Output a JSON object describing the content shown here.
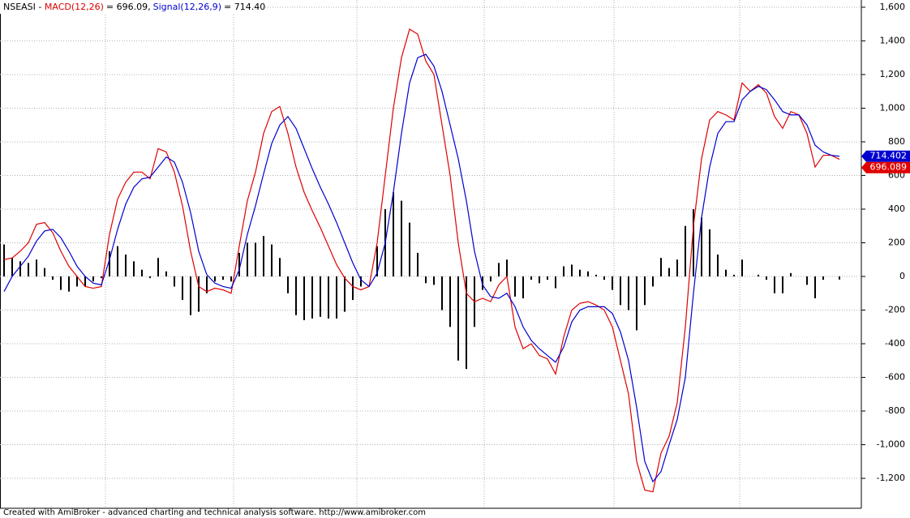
{
  "chart_data": {
    "type": "macd",
    "title_prefix": "NSEASI - ",
    "footer": "Created with AmiBroker - advanced charting and technical analysis software. http://www.amibroker.com",
    "x": [
      0,
      1,
      2,
      3,
      4,
      5,
      6,
      7,
      8,
      9,
      10,
      11,
      12,
      13,
      14,
      15,
      16,
      17,
      18,
      19,
      20,
      21,
      22,
      23,
      24,
      25,
      26,
      27,
      28,
      29,
      30,
      31,
      32,
      33,
      34,
      35,
      36,
      37,
      38,
      39,
      40,
      41,
      42,
      43,
      44,
      45,
      46,
      47,
      48,
      49,
      50,
      51,
      52,
      53,
      54,
      55,
      56,
      57,
      58,
      59,
      60,
      61,
      62,
      63,
      64,
      65,
      66,
      67,
      68,
      69,
      70,
      71,
      72,
      73,
      74,
      75,
      76,
      77,
      78,
      79,
      80,
      81,
      82,
      83,
      84,
      85,
      86,
      87,
      88,
      89,
      90,
      91,
      92,
      93,
      94,
      95,
      96,
      97,
      98,
      99,
      100,
      101,
      102,
      103
    ],
    "xlim": [
      -0.5,
      105.7
    ],
    "xgrid": [
      12.5,
      28.3,
      43.5,
      59.2,
      75.2,
      90.7
    ],
    "ylim": [
      -1378,
      1643
    ],
    "yticks": [
      {
        "value": 1600,
        "label": "1,600"
      },
      {
        "value": 1400,
        "label": "1,400"
      },
      {
        "value": 1200,
        "label": "1,200"
      },
      {
        "value": 1000,
        "label": "1,000"
      },
      800,
      600,
      400,
      200,
      0,
      -200,
      -400,
      -600,
      -800,
      {
        "value": -1000,
        "label": "-1,000"
      },
      {
        "value": -1200,
        "label": "-1,200"
      }
    ],
    "grid": true,
    "series": [
      {
        "name": "MACD(12,26)",
        "color": "#e00000",
        "title_value": "= 696.09,",
        "last_label": "696.089",
        "values": [
          100,
          110,
          150,
          200,
          310,
          320,
          260,
          150,
          60,
          0,
          -60,
          -70,
          -60,
          250,
          460,
          560,
          620,
          620,
          580,
          760,
          740,
          620,
          420,
          150,
          -60,
          -90,
          -70,
          -80,
          -100,
          180,
          450,
          620,
          850,
          980,
          1010,
          850,
          650,
          500,
          390,
          290,
          180,
          70,
          -10,
          -60,
          -80,
          -60,
          200,
          600,
          1000,
          1300,
          1470,
          1440,
          1280,
          1200,
          900,
          600,
          200,
          -100,
          -150,
          -130,
          -150,
          -50,
          0,
          -300,
          -430,
          -400,
          -470,
          -490,
          -580,
          -360,
          -200,
          -160,
          -150,
          -170,
          -200,
          -300,
          -500,
          -700,
          -1100,
          -1270,
          -1280,
          -1050,
          -950,
          -750,
          -300,
          300,
          700,
          930,
          980,
          960,
          930,
          1150,
          1100,
          1140,
          1090,
          950,
          880,
          980,
          960,
          850,
          650,
          720,
          720,
          696.09
        ]
      },
      {
        "name": "Signal(12,26,9)",
        "color": "#0000d0",
        "title_value": "= 714.40",
        "last_label": "714.402",
        "values": [
          -90,
          0,
          60,
          120,
          210,
          270,
          280,
          230,
          150,
          60,
          0,
          -40,
          -50,
          100,
          280,
          430,
          530,
          580,
          590,
          650,
          710,
          680,
          560,
          380,
          150,
          10,
          -40,
          -60,
          -70,
          40,
          250,
          420,
          610,
          790,
          900,
          950,
          880,
          760,
          640,
          530,
          430,
          320,
          200,
          80,
          -20,
          -60,
          20,
          200,
          500,
          850,
          1150,
          1300,
          1320,
          1250,
          1100,
          900,
          700,
          450,
          150,
          -50,
          -120,
          -130,
          -100,
          -180,
          -300,
          -380,
          -430,
          -470,
          -510,
          -420,
          -270,
          -200,
          -180,
          -180,
          -180,
          -220,
          -330,
          -500,
          -780,
          -1100,
          -1220,
          -1160,
          -1000,
          -850,
          -600,
          -100,
          350,
          650,
          850,
          920,
          920,
          1050,
          1100,
          1130,
          1110,
          1050,
          980,
          960,
          960,
          900,
          780,
          740,
          720,
          714.4
        ]
      }
    ],
    "histogram": {
      "color": "#000000",
      "values": [
        190,
        110,
        90,
        80,
        100,
        50,
        -20,
        -80,
        -90,
        -60,
        -60,
        -30,
        -10,
        150,
        180,
        130,
        90,
        40,
        -10,
        110,
        30,
        -60,
        -140,
        -230,
        -210,
        -100,
        -30,
        -20,
        -30,
        140,
        200,
        200,
        240,
        190,
        110,
        -100,
        -230,
        -260,
        -250,
        -240,
        -250,
        -250,
        -210,
        -140,
        -60,
        0,
        180,
        400,
        500,
        450,
        320,
        140,
        -40,
        -50,
        -200,
        -300,
        -500,
        -550,
        -300,
        -80,
        -30,
        80,
        100,
        -120,
        -130,
        -20,
        -40,
        -20,
        -70,
        60,
        70,
        40,
        30,
        10,
        -20,
        -80,
        -170,
        -200,
        -320,
        -170,
        -60,
        110,
        50,
        100,
        300,
        400,
        350,
        280,
        130,
        40,
        10,
        100,
        0,
        10,
        -20,
        -100,
        -100,
        20,
        0,
        -50,
        -130,
        -20,
        0,
        -18.31
      ]
    }
  }
}
